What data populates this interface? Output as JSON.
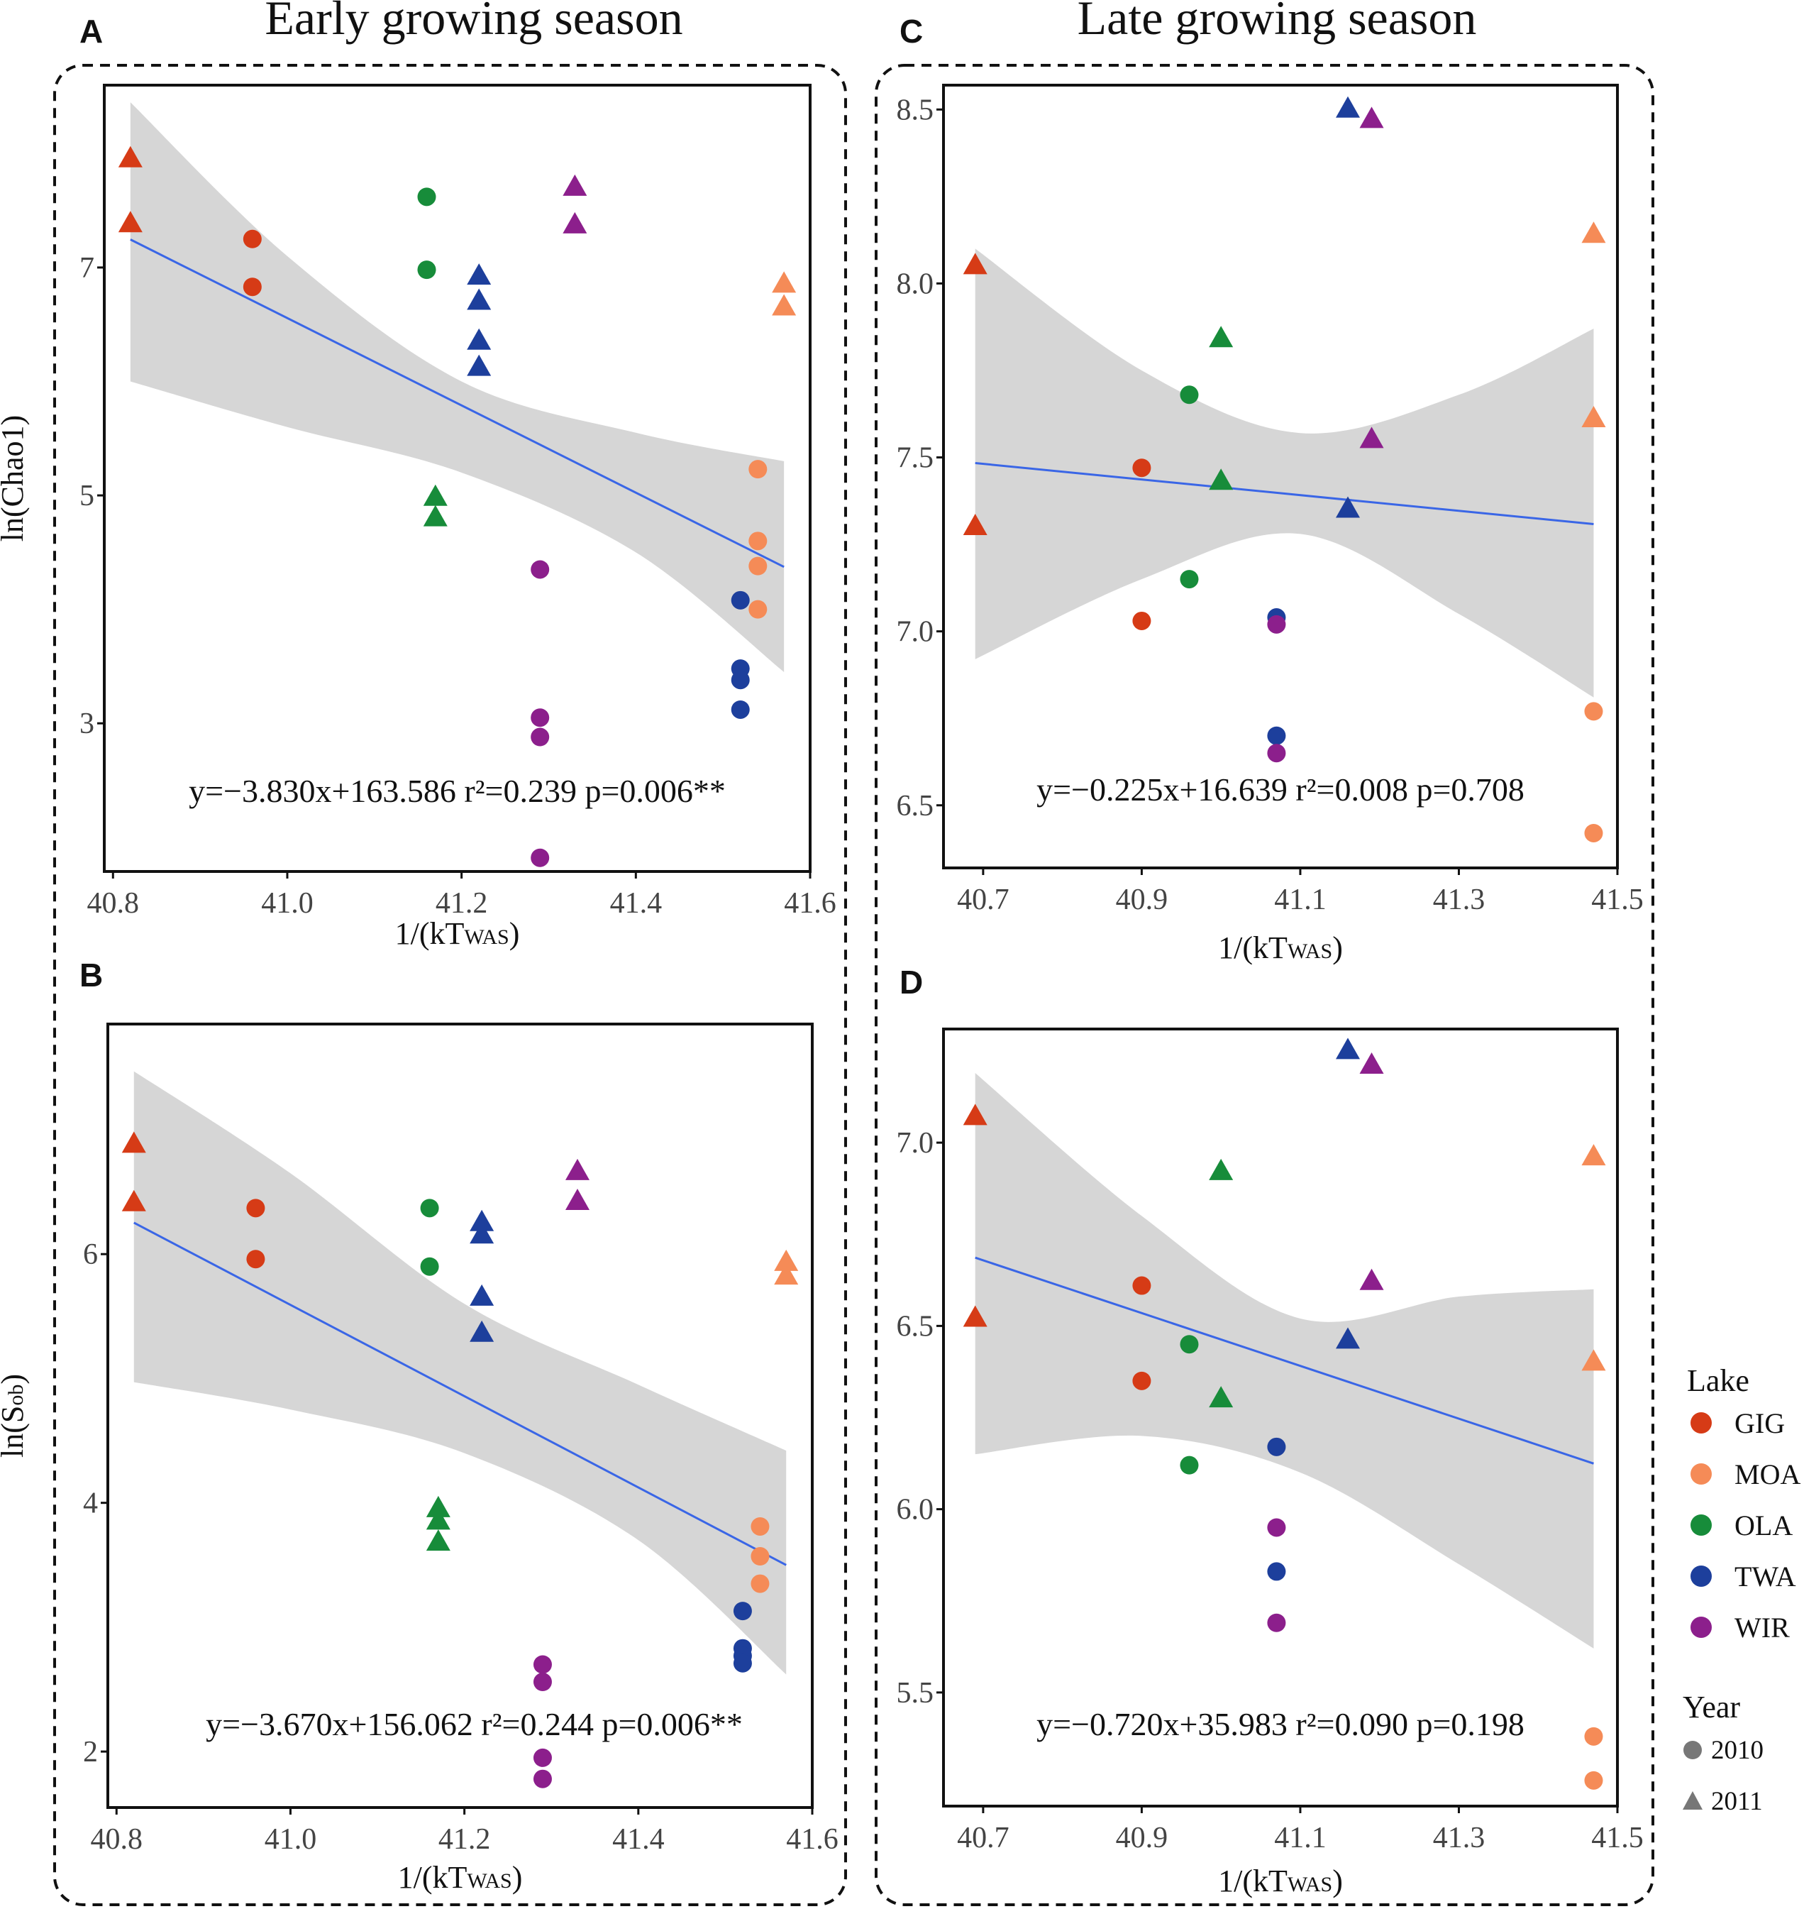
{
  "headings": {
    "early": "Early growing season",
    "late": "Late growing season"
  },
  "colors": {
    "GIG": "#d63b16",
    "MOA": "#f58b57",
    "OLA": "#178c3a",
    "TWA": "#1d3f9c",
    "WIR": "#8c1f8c",
    "fit": "#3a66e6",
    "band": "#d6d6d6"
  },
  "legend": {
    "lake_title": "Lake",
    "lakes": [
      "GIG",
      "MOA",
      "OLA",
      "TWA",
      "WIR"
    ],
    "year_title": "Year",
    "years": [
      "2010",
      "2011"
    ]
  },
  "chart_data": [
    {
      "id": "A",
      "panel_label": "A",
      "type": "scatter",
      "xlabel": "1/(kT",
      "xlabel_sub": "WAS",
      "xlabel_close": ")",
      "ylabel": "ln(Chao1)",
      "ylabel_sub": "",
      "ylabel_close": "",
      "xlim": [
        40.79,
        41.6
      ],
      "ylim": [
        1.7,
        8.6
      ],
      "xticks": [
        40.8,
        41.0,
        41.2,
        41.4,
        41.6
      ],
      "xtick_labels": [
        "40.8",
        "41.0",
        "41.2",
        "41.4",
        "41.6"
      ],
      "yticks": [
        3,
        5,
        7
      ],
      "ytick_labels": [
        "3",
        "5",
        "7"
      ],
      "fit": {
        "slope": -3.83,
        "intercept": 163.586,
        "x": [
          40.82,
          41.57
        ]
      },
      "band": {
        "x": [
          40.82,
          41.0,
          41.2,
          41.4,
          41.57
        ],
        "lower": [
          6.0,
          5.6,
          5.2,
          4.5,
          3.45
        ],
        "upper": [
          8.45,
          7.1,
          6.0,
          5.55,
          5.3
        ]
      },
      "equation": "y=−3.830x+163.586 r²=0.239 p=0.006**",
      "points": [
        {
          "lake": "GIG",
          "year": "2011",
          "x": 40.82,
          "y": 7.95
        },
        {
          "lake": "GIG",
          "year": "2011",
          "x": 40.82,
          "y": 7.38
        },
        {
          "lake": "GIG",
          "year": "2010",
          "x": 40.96,
          "y": 7.25
        },
        {
          "lake": "GIG",
          "year": "2010",
          "x": 40.96,
          "y": 6.83
        },
        {
          "lake": "OLA",
          "year": "2010",
          "x": 41.16,
          "y": 7.62
        },
        {
          "lake": "OLA",
          "year": "2010",
          "x": 41.16,
          "y": 6.98
        },
        {
          "lake": "OLA",
          "year": "2011",
          "x": 41.17,
          "y": 4.98
        },
        {
          "lake": "OLA",
          "year": "2011",
          "x": 41.17,
          "y": 4.8
        },
        {
          "lake": "TWA",
          "year": "2011",
          "x": 41.22,
          "y": 6.92
        },
        {
          "lake": "TWA",
          "year": "2011",
          "x": 41.22,
          "y": 6.7
        },
        {
          "lake": "TWA",
          "year": "2011",
          "x": 41.22,
          "y": 6.35
        },
        {
          "lake": "TWA",
          "year": "2011",
          "x": 41.22,
          "y": 6.12
        },
        {
          "lake": "WIR",
          "year": "2011",
          "x": 41.33,
          "y": 7.7
        },
        {
          "lake": "WIR",
          "year": "2011",
          "x": 41.33,
          "y": 7.37
        },
        {
          "lake": "WIR",
          "year": "2010",
          "x": 41.29,
          "y": 4.35
        },
        {
          "lake": "WIR",
          "year": "2010",
          "x": 41.29,
          "y": 3.05
        },
        {
          "lake": "WIR",
          "year": "2010",
          "x": 41.29,
          "y": 2.88
        },
        {
          "lake": "WIR",
          "year": "2010",
          "x": 41.29,
          "y": 1.82
        },
        {
          "lake": "MOA",
          "year": "2011",
          "x": 41.57,
          "y": 6.85
        },
        {
          "lake": "MOA",
          "year": "2011",
          "x": 41.57,
          "y": 6.65
        },
        {
          "lake": "MOA",
          "year": "2010",
          "x": 41.54,
          "y": 5.23
        },
        {
          "lake": "MOA",
          "year": "2010",
          "x": 41.54,
          "y": 4.6
        },
        {
          "lake": "MOA",
          "year": "2010",
          "x": 41.54,
          "y": 4.38
        },
        {
          "lake": "MOA",
          "year": "2010",
          "x": 41.54,
          "y": 4.0
        },
        {
          "lake": "TWA",
          "year": "2010",
          "x": 41.52,
          "y": 4.08
        },
        {
          "lake": "TWA",
          "year": "2010",
          "x": 41.52,
          "y": 3.48
        },
        {
          "lake": "TWA",
          "year": "2010",
          "x": 41.52,
          "y": 3.38
        },
        {
          "lake": "TWA",
          "year": "2010",
          "x": 41.52,
          "y": 3.12
        }
      ]
    },
    {
      "id": "B",
      "panel_label": "B",
      "type": "scatter",
      "xlabel": "1/(kT",
      "xlabel_sub": "WAS",
      "xlabel_close": ")",
      "ylabel": "ln(S",
      "ylabel_sub": "ob",
      "ylabel_close": ")",
      "xlim": [
        40.79,
        41.6
      ],
      "ylim": [
        1.55,
        7.85
      ],
      "xticks": [
        40.8,
        41.0,
        41.2,
        41.4,
        41.6
      ],
      "xtick_labels": [
        "40.8",
        "41.0",
        "41.2",
        "41.4",
        "41.6"
      ],
      "yticks": [
        2,
        4,
        6
      ],
      "ytick_labels": [
        "2",
        "4",
        "6"
      ],
      "fit": {
        "slope": -3.67,
        "intercept": 156.062,
        "x": [
          40.82,
          41.57
        ]
      },
      "band": {
        "x": [
          40.82,
          41.0,
          41.2,
          41.4,
          41.57
        ],
        "lower": [
          4.97,
          4.75,
          4.4,
          3.7,
          2.62
        ],
        "upper": [
          7.47,
          6.65,
          5.6,
          4.95,
          4.42
        ]
      },
      "equation": "y=−3.670x+156.062 r²=0.244 p=0.006**",
      "points": [
        {
          "lake": "GIG",
          "year": "2011",
          "x": 40.82,
          "y": 6.88
        },
        {
          "lake": "GIG",
          "year": "2011",
          "x": 40.82,
          "y": 6.41
        },
        {
          "lake": "GIG",
          "year": "2010",
          "x": 40.96,
          "y": 6.37
        },
        {
          "lake": "GIG",
          "year": "2010",
          "x": 40.96,
          "y": 5.96
        },
        {
          "lake": "OLA",
          "year": "2010",
          "x": 41.16,
          "y": 6.37
        },
        {
          "lake": "OLA",
          "year": "2010",
          "x": 41.16,
          "y": 5.9
        },
        {
          "lake": "OLA",
          "year": "2011",
          "x": 41.17,
          "y": 3.95
        },
        {
          "lake": "OLA",
          "year": "2011",
          "x": 41.17,
          "y": 3.85
        },
        {
          "lake": "OLA",
          "year": "2011",
          "x": 41.17,
          "y": 3.68
        },
        {
          "lake": "TWA",
          "year": "2011",
          "x": 41.22,
          "y": 6.25
        },
        {
          "lake": "TWA",
          "year": "2011",
          "x": 41.22,
          "y": 6.15
        },
        {
          "lake": "TWA",
          "year": "2011",
          "x": 41.22,
          "y": 5.65
        },
        {
          "lake": "TWA",
          "year": "2011",
          "x": 41.22,
          "y": 5.36
        },
        {
          "lake": "WIR",
          "year": "2011",
          "x": 41.33,
          "y": 6.66
        },
        {
          "lake": "WIR",
          "year": "2011",
          "x": 41.33,
          "y": 6.42
        },
        {
          "lake": "WIR",
          "year": "2010",
          "x": 41.29,
          "y": 2.7
        },
        {
          "lake": "WIR",
          "year": "2010",
          "x": 41.29,
          "y": 2.56
        },
        {
          "lake": "WIR",
          "year": "2010",
          "x": 41.29,
          "y": 1.95
        },
        {
          "lake": "WIR",
          "year": "2010",
          "x": 41.29,
          "y": 1.78
        },
        {
          "lake": "MOA",
          "year": "2011",
          "x": 41.57,
          "y": 5.93
        },
        {
          "lake": "MOA",
          "year": "2011",
          "x": 41.57,
          "y": 5.82
        },
        {
          "lake": "MOA",
          "year": "2010",
          "x": 41.54,
          "y": 3.81
        },
        {
          "lake": "MOA",
          "year": "2010",
          "x": 41.54,
          "y": 3.57
        },
        {
          "lake": "MOA",
          "year": "2010",
          "x": 41.54,
          "y": 3.35
        },
        {
          "lake": "TWA",
          "year": "2010",
          "x": 41.52,
          "y": 3.13
        },
        {
          "lake": "TWA",
          "year": "2010",
          "x": 41.52,
          "y": 2.83
        },
        {
          "lake": "TWA",
          "year": "2010",
          "x": 41.52,
          "y": 2.77
        },
        {
          "lake": "TWA",
          "year": "2010",
          "x": 41.52,
          "y": 2.71
        }
      ]
    },
    {
      "id": "C",
      "panel_label": "C",
      "type": "scatter",
      "xlabel": "1/(kT",
      "xlabel_sub": "WAS",
      "xlabel_close": ")",
      "ylabel": "",
      "ylabel_sub": "",
      "ylabel_close": "",
      "xlim": [
        40.65,
        41.5
      ],
      "ylim": [
        6.32,
        8.57
      ],
      "xticks": [
        40.7,
        40.9,
        41.1,
        41.3,
        41.5
      ],
      "xtick_labels": [
        "40.7",
        "40.9",
        "41.1",
        "41.3",
        "41.5"
      ],
      "yticks": [
        6.5,
        7.0,
        7.5,
        8.0,
        8.5
      ],
      "ytick_labels": [
        "6.5",
        "7.0",
        "7.5",
        "8.0",
        "8.5"
      ],
      "fit": {
        "slope": -0.225,
        "intercept": 16.639,
        "x": [
          40.69,
          41.47
        ]
      },
      "band": {
        "x": [
          40.69,
          40.9,
          41.1,
          41.3,
          41.47
        ],
        "lower": [
          6.92,
          7.15,
          7.28,
          7.05,
          6.81
        ],
        "upper": [
          8.1,
          7.75,
          7.57,
          7.68,
          7.87
        ]
      },
      "equation": "y=−0.225x+16.639 r²=0.008 p=0.708",
      "points": [
        {
          "lake": "GIG",
          "year": "2011",
          "x": 40.69,
          "y": 8.05
        },
        {
          "lake": "GIG",
          "year": "2011",
          "x": 40.69,
          "y": 7.3
        },
        {
          "lake": "GIG",
          "year": "2010",
          "x": 40.9,
          "y": 7.47
        },
        {
          "lake": "GIG",
          "year": "2010",
          "x": 40.9,
          "y": 7.03
        },
        {
          "lake": "OLA",
          "year": "2011",
          "x": 41.0,
          "y": 7.84
        },
        {
          "lake": "OLA",
          "year": "2011",
          "x": 41.0,
          "y": 7.43
        },
        {
          "lake": "OLA",
          "year": "2010",
          "x": 40.96,
          "y": 7.68
        },
        {
          "lake": "OLA",
          "year": "2010",
          "x": 40.96,
          "y": 7.15
        },
        {
          "lake": "TWA",
          "year": "2011",
          "x": 41.16,
          "y": 8.5
        },
        {
          "lake": "TWA",
          "year": "2011",
          "x": 41.16,
          "y": 7.35
        },
        {
          "lake": "WIR",
          "year": "2011",
          "x": 41.19,
          "y": 8.47
        },
        {
          "lake": "WIR",
          "year": "2011",
          "x": 41.19,
          "y": 7.55
        },
        {
          "lake": "TWA",
          "year": "2010",
          "x": 41.07,
          "y": 7.04
        },
        {
          "lake": "WIR",
          "year": "2010",
          "x": 41.07,
          "y": 7.02
        },
        {
          "lake": "TWA",
          "year": "2010",
          "x": 41.07,
          "y": 6.7
        },
        {
          "lake": "WIR",
          "year": "2010",
          "x": 41.07,
          "y": 6.65
        },
        {
          "lake": "MOA",
          "year": "2011",
          "x": 41.47,
          "y": 8.14
        },
        {
          "lake": "MOA",
          "year": "2011",
          "x": 41.47,
          "y": 7.61
        },
        {
          "lake": "MOA",
          "year": "2010",
          "x": 41.47,
          "y": 6.77
        },
        {
          "lake": "MOA",
          "year": "2010",
          "x": 41.47,
          "y": 6.42
        }
      ]
    },
    {
      "id": "D",
      "panel_label": "D",
      "type": "scatter",
      "xlabel": "1/(kT",
      "xlabel_sub": "WAS",
      "xlabel_close": ")",
      "ylabel": "",
      "ylabel_sub": "",
      "ylabel_close": "",
      "xlim": [
        40.65,
        41.5
      ],
      "ylim": [
        5.19,
        7.31
      ],
      "xticks": [
        40.7,
        40.9,
        41.1,
        41.3,
        41.5
      ],
      "xtick_labels": [
        "40.7",
        "40.9",
        "41.1",
        "41.3",
        "41.5"
      ],
      "yticks": [
        5.5,
        6.0,
        6.5,
        7.0
      ],
      "ytick_labels": [
        "5.5",
        "6.0",
        "6.5",
        "7.0"
      ],
      "fit": {
        "slope": -0.72,
        "intercept": 35.983,
        "x": [
          40.69,
          41.47
        ]
      },
      "band": {
        "x": [
          40.69,
          40.9,
          41.1,
          41.3,
          41.47
        ],
        "lower": [
          6.15,
          6.2,
          6.1,
          5.85,
          5.62
        ],
        "upper": [
          7.19,
          6.8,
          6.52,
          6.58,
          6.6
        ]
      },
      "equation": "y=−0.720x+35.983 r²=0.090 p=0.198",
      "points": [
        {
          "lake": "GIG",
          "year": "2011",
          "x": 40.69,
          "y": 7.07
        },
        {
          "lake": "GIG",
          "year": "2011",
          "x": 40.69,
          "y": 6.52
        },
        {
          "lake": "GIG",
          "year": "2010",
          "x": 40.9,
          "y": 6.61
        },
        {
          "lake": "GIG",
          "year": "2010",
          "x": 40.9,
          "y": 6.35
        },
        {
          "lake": "OLA",
          "year": "2011",
          "x": 41.0,
          "y": 6.92
        },
        {
          "lake": "OLA",
          "year": "2011",
          "x": 41.0,
          "y": 6.3
        },
        {
          "lake": "OLA",
          "year": "2010",
          "x": 40.96,
          "y": 6.45
        },
        {
          "lake": "OLA",
          "year": "2010",
          "x": 40.96,
          "y": 6.12
        },
        {
          "lake": "TWA",
          "year": "2011",
          "x": 41.16,
          "y": 7.25
        },
        {
          "lake": "TWA",
          "year": "2011",
          "x": 41.16,
          "y": 6.46
        },
        {
          "lake": "WIR",
          "year": "2011",
          "x": 41.19,
          "y": 7.21
        },
        {
          "lake": "WIR",
          "year": "2011",
          "x": 41.19,
          "y": 6.62
        },
        {
          "lake": "TWA",
          "year": "2010",
          "x": 41.07,
          "y": 6.17
        },
        {
          "lake": "WIR",
          "year": "2010",
          "x": 41.07,
          "y": 5.95
        },
        {
          "lake": "TWA",
          "year": "2010",
          "x": 41.07,
          "y": 5.83
        },
        {
          "lake": "WIR",
          "year": "2010",
          "x": 41.07,
          "y": 5.69
        },
        {
          "lake": "MOA",
          "year": "2011",
          "x": 41.47,
          "y": 6.96
        },
        {
          "lake": "MOA",
          "year": "2011",
          "x": 41.47,
          "y": 6.4
        },
        {
          "lake": "MOA",
          "year": "2010",
          "x": 41.47,
          "y": 5.38
        },
        {
          "lake": "MOA",
          "year": "2010",
          "x": 41.47,
          "y": 5.26
        }
      ]
    }
  ]
}
